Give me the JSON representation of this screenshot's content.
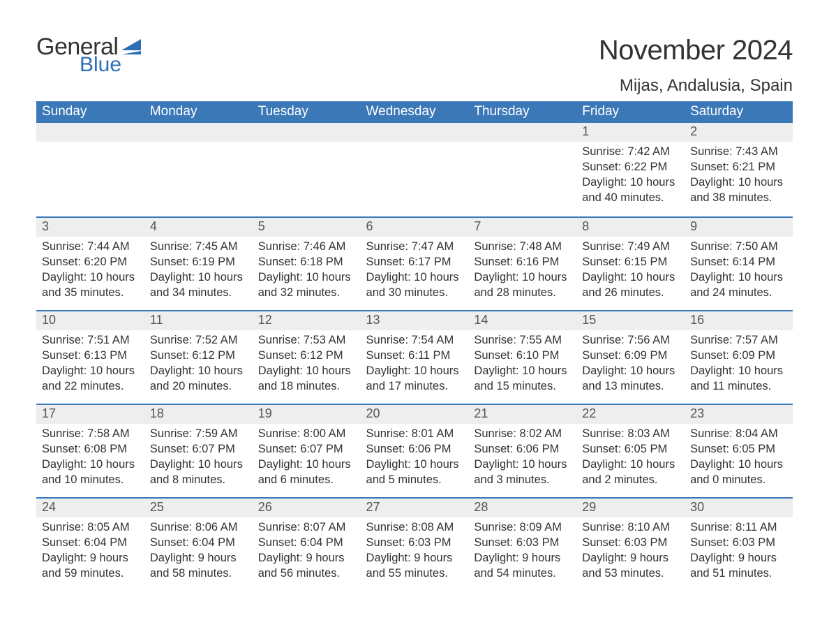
{
  "logo": {
    "general": "General",
    "blue": "Blue",
    "icon_color": "#2b6fb5"
  },
  "header": {
    "month_title": "November 2024",
    "location": "Mijas, Andalusia, Spain"
  },
  "calendar": {
    "type": "table",
    "header_bg": "#3b78b8",
    "header_fg": "#ffffff",
    "daynum_bg": "#eeeeee",
    "separator_color": "#3b78b8",
    "text_color": "#333333",
    "day_headers": [
      "Sunday",
      "Monday",
      "Tuesday",
      "Wednesday",
      "Thursday",
      "Friday",
      "Saturday"
    ],
    "weeks": [
      [
        null,
        null,
        null,
        null,
        null,
        {
          "n": "1",
          "sunrise": "Sunrise: 7:42 AM",
          "sunset": "Sunset: 6:22 PM",
          "daylight": "Daylight: 10 hours and 40 minutes."
        },
        {
          "n": "2",
          "sunrise": "Sunrise: 7:43 AM",
          "sunset": "Sunset: 6:21 PM",
          "daylight": "Daylight: 10 hours and 38 minutes."
        }
      ],
      [
        {
          "n": "3",
          "sunrise": "Sunrise: 7:44 AM",
          "sunset": "Sunset: 6:20 PM",
          "daylight": "Daylight: 10 hours and 35 minutes."
        },
        {
          "n": "4",
          "sunrise": "Sunrise: 7:45 AM",
          "sunset": "Sunset: 6:19 PM",
          "daylight": "Daylight: 10 hours and 34 minutes."
        },
        {
          "n": "5",
          "sunrise": "Sunrise: 7:46 AM",
          "sunset": "Sunset: 6:18 PM",
          "daylight": "Daylight: 10 hours and 32 minutes."
        },
        {
          "n": "6",
          "sunrise": "Sunrise: 7:47 AM",
          "sunset": "Sunset: 6:17 PM",
          "daylight": "Daylight: 10 hours and 30 minutes."
        },
        {
          "n": "7",
          "sunrise": "Sunrise: 7:48 AM",
          "sunset": "Sunset: 6:16 PM",
          "daylight": "Daylight: 10 hours and 28 minutes."
        },
        {
          "n": "8",
          "sunrise": "Sunrise: 7:49 AM",
          "sunset": "Sunset: 6:15 PM",
          "daylight": "Daylight: 10 hours and 26 minutes."
        },
        {
          "n": "9",
          "sunrise": "Sunrise: 7:50 AM",
          "sunset": "Sunset: 6:14 PM",
          "daylight": "Daylight: 10 hours and 24 minutes."
        }
      ],
      [
        {
          "n": "10",
          "sunrise": "Sunrise: 7:51 AM",
          "sunset": "Sunset: 6:13 PM",
          "daylight": "Daylight: 10 hours and 22 minutes."
        },
        {
          "n": "11",
          "sunrise": "Sunrise: 7:52 AM",
          "sunset": "Sunset: 6:12 PM",
          "daylight": "Daylight: 10 hours and 20 minutes."
        },
        {
          "n": "12",
          "sunrise": "Sunrise: 7:53 AM",
          "sunset": "Sunset: 6:12 PM",
          "daylight": "Daylight: 10 hours and 18 minutes."
        },
        {
          "n": "13",
          "sunrise": "Sunrise: 7:54 AM",
          "sunset": "Sunset: 6:11 PM",
          "daylight": "Daylight: 10 hours and 17 minutes."
        },
        {
          "n": "14",
          "sunrise": "Sunrise: 7:55 AM",
          "sunset": "Sunset: 6:10 PM",
          "daylight": "Daylight: 10 hours and 15 minutes."
        },
        {
          "n": "15",
          "sunrise": "Sunrise: 7:56 AM",
          "sunset": "Sunset: 6:09 PM",
          "daylight": "Daylight: 10 hours and 13 minutes."
        },
        {
          "n": "16",
          "sunrise": "Sunrise: 7:57 AM",
          "sunset": "Sunset: 6:09 PM",
          "daylight": "Daylight: 10 hours and 11 minutes."
        }
      ],
      [
        {
          "n": "17",
          "sunrise": "Sunrise: 7:58 AM",
          "sunset": "Sunset: 6:08 PM",
          "daylight": "Daylight: 10 hours and 10 minutes."
        },
        {
          "n": "18",
          "sunrise": "Sunrise: 7:59 AM",
          "sunset": "Sunset: 6:07 PM",
          "daylight": "Daylight: 10 hours and 8 minutes."
        },
        {
          "n": "19",
          "sunrise": "Sunrise: 8:00 AM",
          "sunset": "Sunset: 6:07 PM",
          "daylight": "Daylight: 10 hours and 6 minutes."
        },
        {
          "n": "20",
          "sunrise": "Sunrise: 8:01 AM",
          "sunset": "Sunset: 6:06 PM",
          "daylight": "Daylight: 10 hours and 5 minutes."
        },
        {
          "n": "21",
          "sunrise": "Sunrise: 8:02 AM",
          "sunset": "Sunset: 6:06 PM",
          "daylight": "Daylight: 10 hours and 3 minutes."
        },
        {
          "n": "22",
          "sunrise": "Sunrise: 8:03 AM",
          "sunset": "Sunset: 6:05 PM",
          "daylight": "Daylight: 10 hours and 2 minutes."
        },
        {
          "n": "23",
          "sunrise": "Sunrise: 8:04 AM",
          "sunset": "Sunset: 6:05 PM",
          "daylight": "Daylight: 10 hours and 0 minutes."
        }
      ],
      [
        {
          "n": "24",
          "sunrise": "Sunrise: 8:05 AM",
          "sunset": "Sunset: 6:04 PM",
          "daylight": "Daylight: 9 hours and 59 minutes."
        },
        {
          "n": "25",
          "sunrise": "Sunrise: 8:06 AM",
          "sunset": "Sunset: 6:04 PM",
          "daylight": "Daylight: 9 hours and 58 minutes."
        },
        {
          "n": "26",
          "sunrise": "Sunrise: 8:07 AM",
          "sunset": "Sunset: 6:04 PM",
          "daylight": "Daylight: 9 hours and 56 minutes."
        },
        {
          "n": "27",
          "sunrise": "Sunrise: 8:08 AM",
          "sunset": "Sunset: 6:03 PM",
          "daylight": "Daylight: 9 hours and 55 minutes."
        },
        {
          "n": "28",
          "sunrise": "Sunrise: 8:09 AM",
          "sunset": "Sunset: 6:03 PM",
          "daylight": "Daylight: 9 hours and 54 minutes."
        },
        {
          "n": "29",
          "sunrise": "Sunrise: 8:10 AM",
          "sunset": "Sunset: 6:03 PM",
          "daylight": "Daylight: 9 hours and 53 minutes."
        },
        {
          "n": "30",
          "sunrise": "Sunrise: 8:11 AM",
          "sunset": "Sunset: 6:03 PM",
          "daylight": "Daylight: 9 hours and 51 minutes."
        }
      ]
    ]
  }
}
